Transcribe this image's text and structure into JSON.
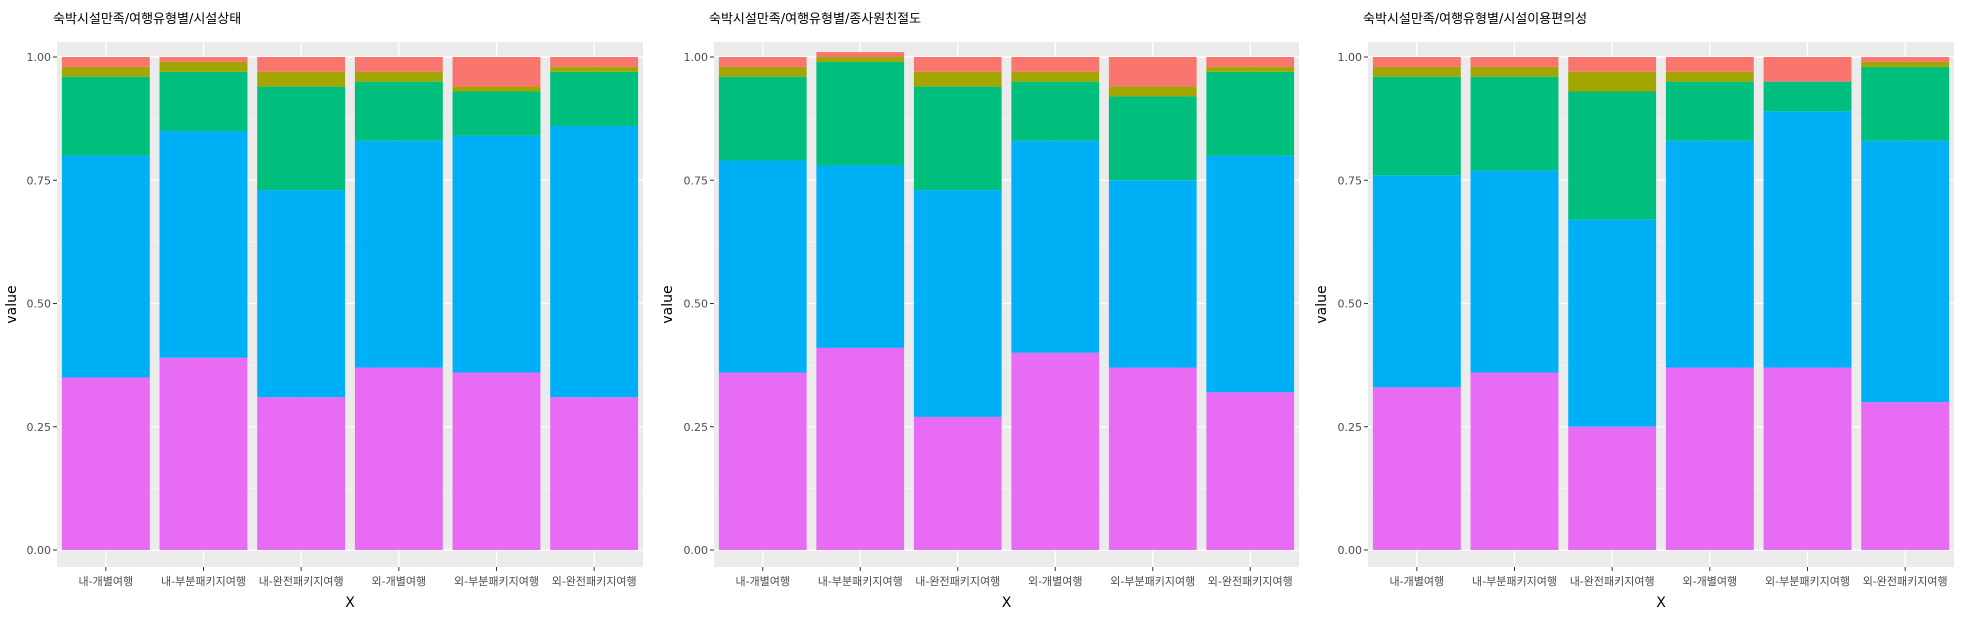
{
  "chart_data": [
    {
      "type": "bar",
      "stacked": true,
      "title": "숙박시설만족/여행유형별/시설상태",
      "xlabel": "X",
      "ylabel": "value",
      "ylim": [
        0,
        1
      ],
      "yticks": [
        "0.00",
        "0.25",
        "0.50",
        "0.75",
        "1.00"
      ],
      "categories": [
        "내-개별여행",
        "내-부분패키지여행",
        "내-완전패키지여행",
        "외-개별여행",
        "외-부분패키지여행",
        "외-완전패키지여행"
      ],
      "series": [
        {
          "color": "#E76BF3",
          "values": [
            0.35,
            0.39,
            0.31,
            0.37,
            0.36,
            0.31
          ]
        },
        {
          "color": "#00B0F6",
          "values": [
            0.45,
            0.46,
            0.42,
            0.46,
            0.48,
            0.55
          ]
        },
        {
          "color": "#00BF7D",
          "values": [
            0.16,
            0.12,
            0.21,
            0.12,
            0.09,
            0.11
          ]
        },
        {
          "color": "#A3A500",
          "values": [
            0.02,
            0.02,
            0.03,
            0.02,
            0.01,
            0.01
          ]
        },
        {
          "color": "#F8766D",
          "values": [
            0.02,
            0.01,
            0.03,
            0.03,
            0.06,
            0.02
          ]
        }
      ]
    },
    {
      "type": "bar",
      "stacked": true,
      "title": "숙박시설만족/여행유형별/종사원친절도",
      "xlabel": "X",
      "ylabel": "value",
      "ylim": [
        0,
        1
      ],
      "yticks": [
        "0.00",
        "0.25",
        "0.50",
        "0.75",
        "1.00"
      ],
      "categories": [
        "내-개별여행",
        "내-부분패키지여행",
        "내-완전패키지여행",
        "외-개별여행",
        "외-부분패키지여행",
        "외-완전패키지여행"
      ],
      "series": [
        {
          "color": "#E76BF3",
          "values": [
            0.36,
            0.41,
            0.27,
            0.4,
            0.37,
            0.32
          ]
        },
        {
          "color": "#00B0F6",
          "values": [
            0.43,
            0.37,
            0.46,
            0.43,
            0.38,
            0.48
          ]
        },
        {
          "color": "#00BF7D",
          "values": [
            0.17,
            0.21,
            0.21,
            0.12,
            0.17,
            0.17
          ]
        },
        {
          "color": "#A3A500",
          "values": [
            0.02,
            0.01,
            0.03,
            0.02,
            0.02,
            0.01
          ]
        },
        {
          "color": "#F8766D",
          "values": [
            0.02,
            0.01,
            0.03,
            0.03,
            0.06,
            0.02
          ]
        }
      ]
    },
    {
      "type": "bar",
      "stacked": true,
      "title": "숙박시설만족/여행유형별/시설이용편의성",
      "xlabel": "X",
      "ylabel": "value",
      "ylim": [
        0,
        1
      ],
      "yticks": [
        "0.00",
        "0.25",
        "0.50",
        "0.75",
        "1.00"
      ],
      "categories": [
        "내-개별여행",
        "내-부분패키지여행",
        "내-완전패키지여행",
        "외-개별여행",
        "외-부분패키지여행",
        "외-완전패키지여행"
      ],
      "series": [
        {
          "color": "#E76BF3",
          "values": [
            0.33,
            0.36,
            0.25,
            0.37,
            0.37,
            0.3
          ]
        },
        {
          "color": "#00B0F6",
          "values": [
            0.43,
            0.41,
            0.42,
            0.46,
            0.52,
            0.53
          ]
        },
        {
          "color": "#00BF7D",
          "values": [
            0.2,
            0.19,
            0.26,
            0.12,
            0.06,
            0.15
          ]
        },
        {
          "color": "#A3A500",
          "values": [
            0.02,
            0.02,
            0.04,
            0.02,
            0.0,
            0.01
          ]
        },
        {
          "color": "#F8766D",
          "values": [
            0.02,
            0.02,
            0.03,
            0.03,
            0.05,
            0.01
          ]
        }
      ]
    }
  ]
}
